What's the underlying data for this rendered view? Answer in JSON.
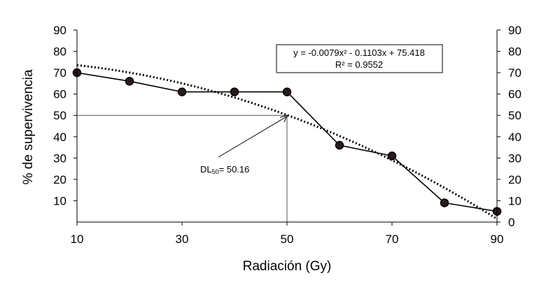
{
  "chart_data": {
    "type": "line",
    "xlabel": "Radiación (Gy)",
    "ylabel": "% de  supervivencia",
    "xlim": [
      10,
      90
    ],
    "ylim": [
      0,
      90
    ],
    "x_ticks": [
      10,
      30,
      50,
      70,
      90
    ],
    "y_ticks_left": [
      10,
      20,
      30,
      40,
      50,
      60,
      70,
      80,
      90
    ],
    "y_ticks_right": [
      0,
      10,
      20,
      30,
      40,
      50,
      60,
      70,
      80,
      90
    ],
    "series": [
      {
        "x": [
          10,
          20,
          30,
          40,
          50,
          60,
          70,
          80,
          90
        ],
        "y": [
          70,
          66,
          61,
          61,
          61,
          36,
          31,
          9,
          5
        ],
        "color": "#000000",
        "marker_color": "#2b1a1a"
      }
    ],
    "trendline": {
      "kind": "polynomial",
      "order": 2,
      "a": -0.0079,
      "b": -0.1103,
      "c": 75.418,
      "style": "dotted",
      "equation_text": "y = -0.0079x² - 0.1103x + 75.418",
      "r2_text": "R² = 0.9552",
      "label_box": "top-right"
    },
    "annotation": {
      "label_main": "DL",
      "label_sub": "50",
      "label_rest": "= 50.16",
      "target_x": 50,
      "target_y": 50
    }
  }
}
